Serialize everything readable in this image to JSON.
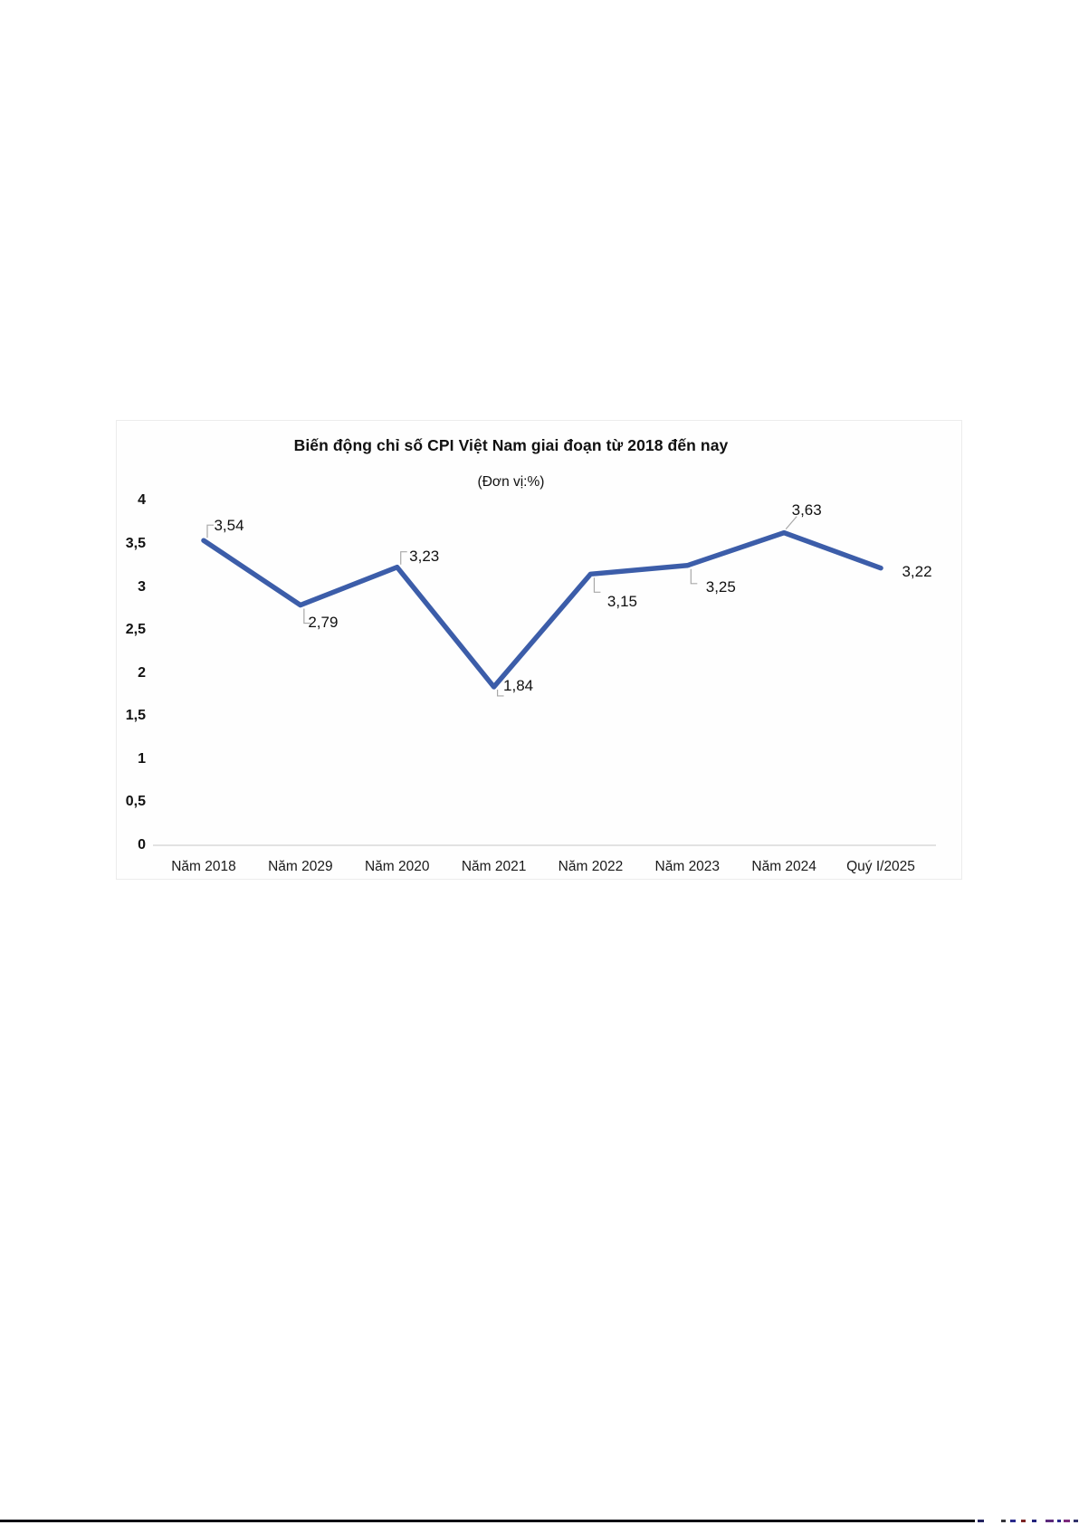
{
  "chart_data": {
    "type": "line",
    "title": "Biến động chỉ số CPI Việt Nam giai đoạn từ 2018 đến nay",
    "subtitle": "(Đơn vị:%)",
    "categories": [
      "Năm 2018",
      "Năm 2029",
      "Năm 2020",
      "Năm 2021",
      "Năm 2022",
      "Năm 2023",
      "Năm 2024",
      "Quý I/2025"
    ],
    "values": [
      3.54,
      2.79,
      3.23,
      1.84,
      3.15,
      3.25,
      3.63,
      3.22
    ],
    "point_labels": [
      "3,54",
      "2,79",
      "3,23",
      "1,84",
      "3,15",
      "3,25",
      "3,63",
      "3,22"
    ],
    "y_ticks": [
      {
        "label": "4",
        "value": 4
      },
      {
        "label": "3,5",
        "value": 3.5
      },
      {
        "label": "3",
        "value": 3
      },
      {
        "label": "2,5",
        "value": 2.5
      },
      {
        "label": "2",
        "value": 2
      },
      {
        "label": "1,5",
        "value": 1.5
      },
      {
        "label": "1",
        "value": 1
      },
      {
        "label": "0,5",
        "value": 0.5
      },
      {
        "label": "0",
        "value": 0
      }
    ],
    "ylim": [
      0,
      4
    ],
    "xlabel": "",
    "ylabel": "",
    "grid": false,
    "legend": false,
    "line_color": "#3C5DA9",
    "axis_color": "#D9D9D9",
    "leader_color": "#A8A8A8",
    "text_color": "#111111"
  },
  "footer": {
    "rule_color": "#101014",
    "marks": [
      {
        "x": 2,
        "w": 7,
        "c": "#23235f"
      },
      {
        "x": 28,
        "w": 5,
        "c": "#35353a"
      },
      {
        "x": 38,
        "w": 6,
        "c": "#2a2a8c"
      },
      {
        "x": 50,
        "w": 5,
        "c": "#7c2424"
      },
      {
        "x": 62,
        "w": 5,
        "c": "#24247c"
      },
      {
        "x": 77,
        "w": 9,
        "c": "#5c2a7c"
      },
      {
        "x": 90,
        "w": 4,
        "c": "#2a2a8c"
      },
      {
        "x": 97,
        "w": 7,
        "c": "#7c2a7c"
      },
      {
        "x": 108,
        "w": 5,
        "c": "#32326a"
      }
    ]
  }
}
